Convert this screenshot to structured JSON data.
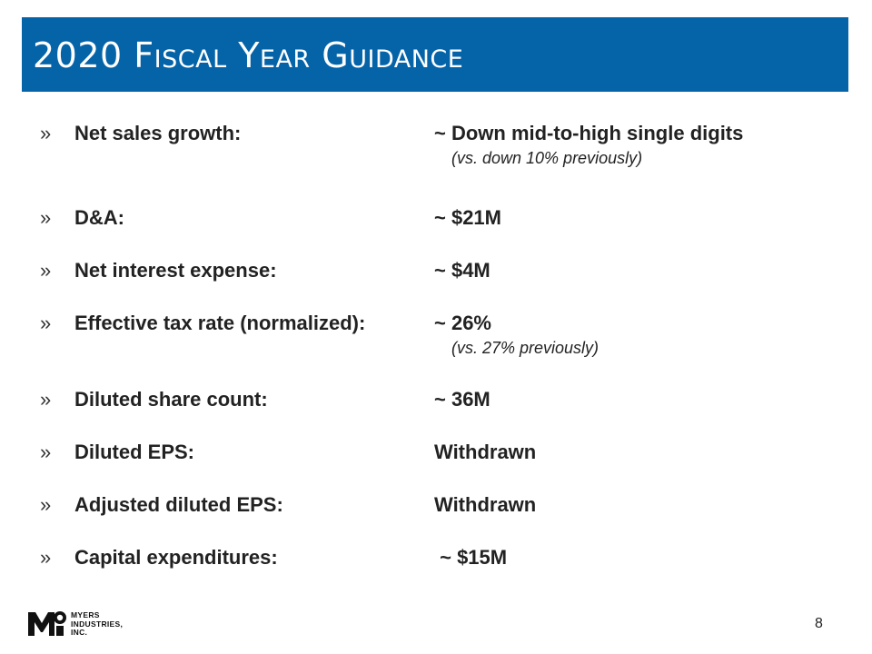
{
  "slide": {
    "title": "2020 Fiscal Year Guidance",
    "accent_color": "#0563a8",
    "page_number": "8"
  },
  "bullet_glyph": "»",
  "items": [
    {
      "label": "Net sales growth:",
      "value": "~ Down mid-to-high single digits",
      "note": "(vs. down 10% previously)"
    },
    {
      "label": "D&A:",
      "value": "~ $21M"
    },
    {
      "label": "Net interest expense:",
      "value": "~ $4M"
    },
    {
      "label": "Effective tax rate (normalized):",
      "value": "~ 26%",
      "note": "(vs. 27% previously)"
    },
    {
      "label": "Diluted share count:",
      "value": "~ 36M"
    },
    {
      "label": "Diluted EPS:",
      "value": "Withdrawn"
    },
    {
      "label": "Adjusted diluted EPS:",
      "value": "Withdrawn"
    },
    {
      "label": "Capital expenditures:",
      "value": " ~ $15M"
    }
  ],
  "logo": {
    "line1": "MYERS",
    "line2": "INDUSTRIES,",
    "line3": "INC."
  }
}
